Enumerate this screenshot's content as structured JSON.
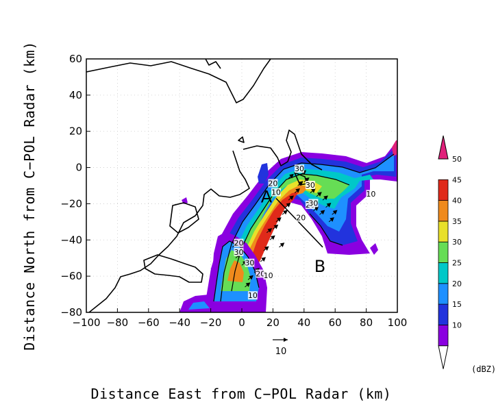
{
  "chart_data": {
    "type": "heatmap",
    "title": "",
    "xlabel": "Distance East from C−POL Radar (km)",
    "ylabel": "Distance North from C−POL Radar (km)",
    "xlim": [
      -100,
      100
    ],
    "ylim": [
      -80,
      60
    ],
    "xticks": [
      "−100",
      "−80",
      "−60",
      "−40",
      "−20",
      "0",
      "20",
      "40",
      "60",
      "80",
      "100"
    ],
    "yticks": [
      "60",
      "40",
      "20",
      "0",
      "−20",
      "−40",
      "−60",
      "−80"
    ],
    "grid": true,
    "colorbar": {
      "units": "(dBZ)",
      "levels": [
        "10",
        "15",
        "20",
        "25",
        "30",
        "35",
        "40",
        "45",
        "50"
      ],
      "colors": [
        "#ffffff",
        "#8a00e0",
        "#2233dd",
        "#1e90ff",
        "#00c8c8",
        "#66dd55",
        "#e8e02a",
        "#ef8a1c",
        "#e02a1a",
        "#e0207a"
      ]
    },
    "cross_section": {
      "start_label": "A",
      "end_label": "B",
      "start": [
        22,
        -17
      ],
      "end": [
        52,
        -44
      ]
    },
    "reference_vector": {
      "label": "10"
    },
    "contour_labels": [
      {
        "text": "30",
        "x": 37,
        "y": -1
      },
      {
        "text": "20",
        "x": 20,
        "y": -9
      },
      {
        "text": "10",
        "x": 22,
        "y": -14
      },
      {
        "text": "30",
        "x": 44,
        "y": -10
      },
      {
        "text": "10",
        "x": 83,
        "y": -15
      },
      {
        "text": "20",
        "x": 44,
        "y": -21
      },
      {
        "text": "30",
        "x": 46,
        "y": -20
      },
      {
        "text": "20",
        "x": 38,
        "y": -28
      },
      {
        "text": "20",
        "x": -2,
        "y": -42
      },
      {
        "text": "30",
        "x": -2,
        "y": -47
      },
      {
        "text": "30",
        "x": 5,
        "y": -53
      },
      {
        "text": "20",
        "x": 12,
        "y": -59
      },
      {
        "text": "10",
        "x": 17,
        "y": -60
      },
      {
        "text": "10",
        "x": 7,
        "y": -71
      }
    ]
  }
}
